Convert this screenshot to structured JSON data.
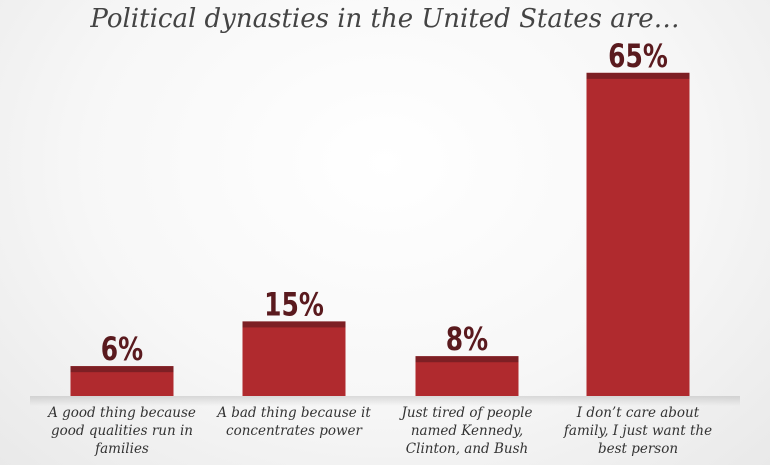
{
  "chart_data": {
    "type": "bar",
    "title": "Political dynasties in the United States are…",
    "categories": [
      "A good thing because good qualities run in families",
      "A bad thing because it concentrates power",
      "Just tired of people named Kennedy, Clinton, and Bush",
      "I don’t care about family, I just want the best person"
    ],
    "values": [
      6,
      15,
      8,
      65
    ],
    "value_labels": [
      "6%",
      "15%",
      "8%",
      "65%"
    ],
    "ylim": [
      0,
      70
    ],
    "grid": false,
    "colors": {
      "bar": "#b02a2e",
      "bar_cap": "#7d1f24",
      "label": "#5a1a1e"
    }
  }
}
